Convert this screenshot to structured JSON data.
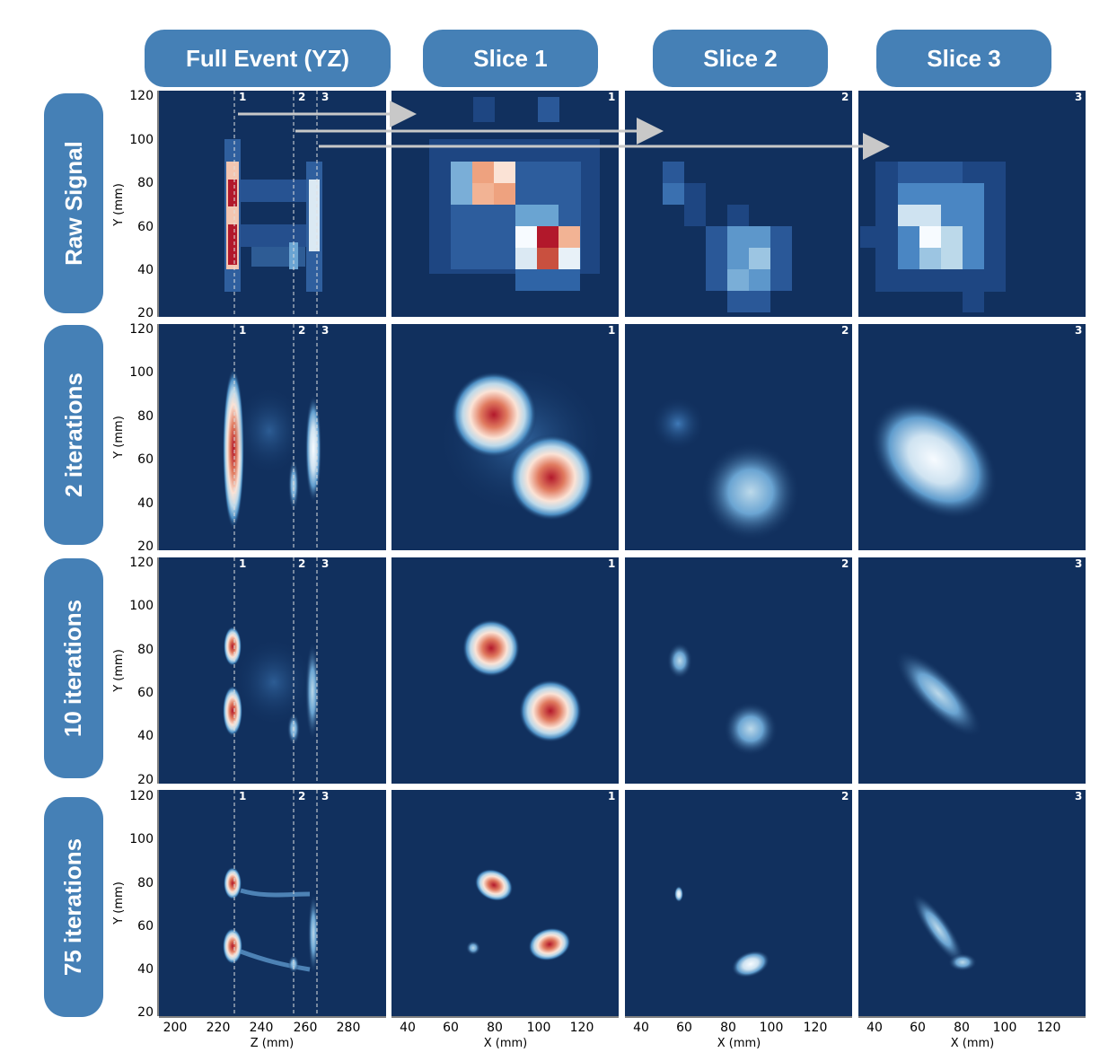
{
  "columns": [
    "Full Event (YZ)",
    "Slice 1",
    "Slice 2",
    "Slice 3"
  ],
  "rows": [
    "Raw Signal",
    "2 iterations",
    "10 iterations",
    "75 iterations"
  ],
  "slice_labels": [
    "1",
    "2",
    "3"
  ],
  "axes": {
    "y_label": "Y (mm)",
    "y_ticks": [
      "20",
      "40",
      "60",
      "80",
      "100",
      "120"
    ],
    "z_label": "Z (mm)",
    "z_ticks": [
      "200",
      "220",
      "240",
      "260",
      "280"
    ],
    "x_label": "X (mm)",
    "x_ticks": [
      "40",
      "60",
      "80",
      "100",
      "120"
    ]
  },
  "colors": {
    "pill": "#4580b6",
    "background": "#11305e",
    "arrow": "#c8c8c8",
    "hot": "#b2182b"
  }
}
